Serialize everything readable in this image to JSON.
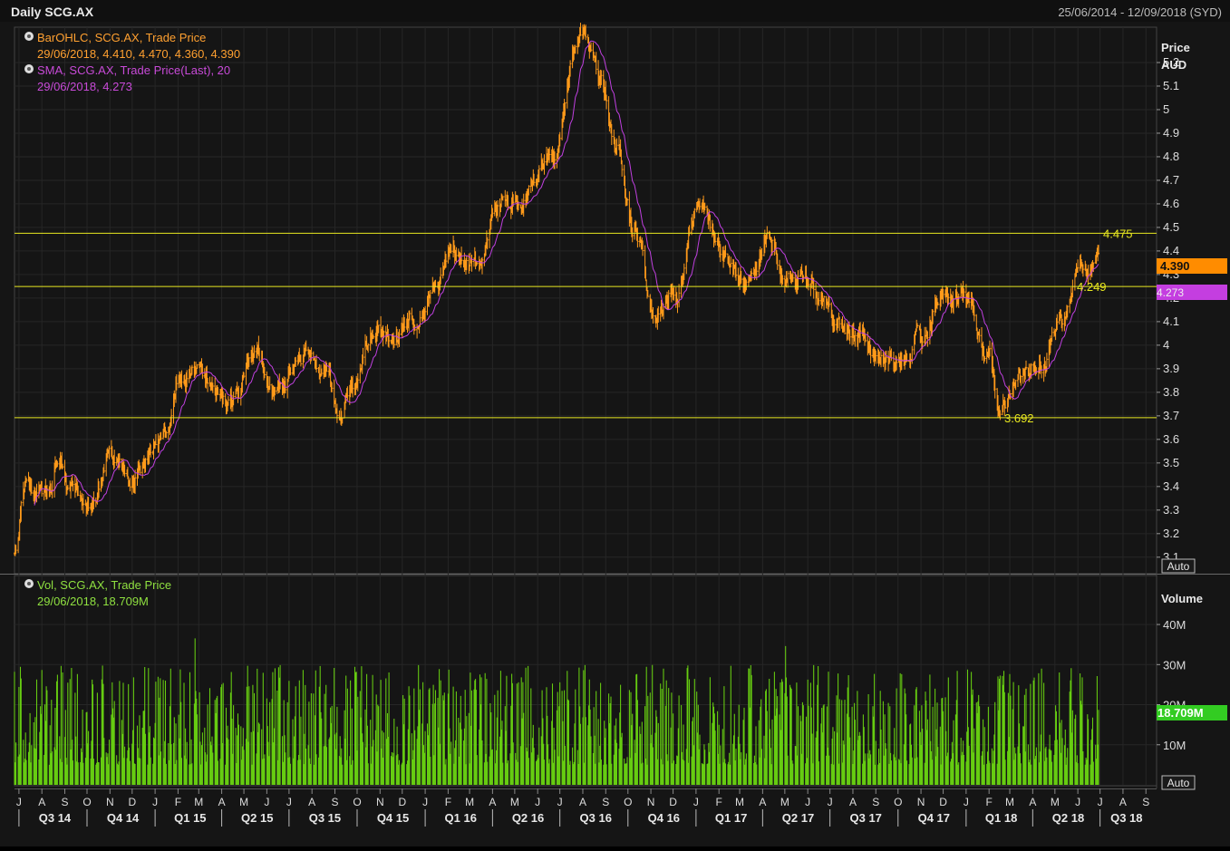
{
  "header": {
    "title": "Daily SCG.AX",
    "date_range": "25/06/2014 - 12/09/2018 (SYD)"
  },
  "legend_price": {
    "ohlc_label": "BarOHLC, SCG.AX, Trade Price",
    "ohlc_values": "29/06/2018, 4.410, 4.470, 4.360, 4.390",
    "sma_label": "SMA, SCG.AX, Trade Price(Last),  20",
    "sma_values": "29/06/2018, 4.273"
  },
  "legend_volume": {
    "vol_label": "Vol, SCG.AX, Trade Price",
    "vol_values": "29/06/2018, 18.709M"
  },
  "price_axis": {
    "title_line1": "Price",
    "title_line2": "AUD",
    "ticks": [
      "5.2",
      "5.1",
      "5",
      "4.9",
      "4.8",
      "4.7",
      "4.6",
      "4.5",
      "4.4",
      "4.3",
      "4.2",
      "4.1",
      "4",
      "3.9",
      "3.8",
      "3.7",
      "3.6",
      "3.5",
      "3.4",
      "3.3",
      "3.2",
      "3.1"
    ],
    "last_price_badge": "4.390",
    "sma_badge": "4.273",
    "auto_label": "Auto"
  },
  "volume_axis": {
    "title": "Volume",
    "ticks": [
      "40M",
      "30M",
      "20M",
      "10M"
    ],
    "last_volume_badge": "18.709M",
    "auto_label": "Auto"
  },
  "horizontal_levels": [
    {
      "value": 4.475,
      "label": "4.475"
    },
    {
      "value": 4.249,
      "label": "4.249"
    },
    {
      "value": 3.692,
      "label": "3.692"
    }
  ],
  "time_axis": {
    "months": [
      "J",
      "A",
      "S",
      "O",
      "N",
      "D",
      "J",
      "F",
      "M",
      "A",
      "M",
      "J",
      "J",
      "A",
      "S",
      "O",
      "N",
      "D",
      "J",
      "F",
      "M",
      "A",
      "M",
      "J",
      "J",
      "A",
      "S",
      "O",
      "N",
      "D",
      "J",
      "F",
      "M",
      "A",
      "M",
      "J",
      "J",
      "A",
      "S",
      "O",
      "N",
      "D",
      "J",
      "F",
      "M",
      "A",
      "M",
      "J",
      "J",
      "A",
      "S"
    ],
    "quarters": [
      "Q3 14",
      "Q4 14",
      "Q1 15",
      "Q2 15",
      "Q3 15",
      "Q4 15",
      "Q1 16",
      "Q2 16",
      "Q3 16",
      "Q4 16",
      "Q1 17",
      "Q2 17",
      "Q3 17",
      "Q4 17",
      "Q1 18",
      "Q2 18",
      "Q3 18"
    ]
  },
  "colors": {
    "background": "#151515",
    "price_line": "#ff9a1a",
    "sma_line": "#c040e0",
    "volume_bars": "#66cc11",
    "level_lines": "#e8e820",
    "text_light": "#e8e8e8",
    "orange_text": "#ffa030",
    "violet_text": "#c84ad8",
    "green_text": "#8fe040"
  },
  "chart_data": {
    "type": "line",
    "ylim_price": [
      3.03,
      5.35
    ],
    "ylim_volume_millions": [
      0,
      52
    ],
    "price_anchors": [
      {
        "date": "2014-06-25",
        "price": 3.1
      },
      {
        "date": "2014-07-10",
        "price": 3.4
      },
      {
        "date": "2014-08-10",
        "price": 3.4
      },
      {
        "date": "2014-08-25",
        "price": 3.55
      },
      {
        "date": "2014-09-10",
        "price": 3.4
      },
      {
        "date": "2014-10-05",
        "price": 3.3
      },
      {
        "date": "2014-11-05",
        "price": 3.55
      },
      {
        "date": "2014-12-05",
        "price": 3.45
      },
      {
        "date": "2014-12-25",
        "price": 3.55
      },
      {
        "date": "2015-01-15",
        "price": 3.6
      },
      {
        "date": "2015-02-05",
        "price": 3.9
      },
      {
        "date": "2015-03-05",
        "price": 3.9
      },
      {
        "date": "2015-04-10",
        "price": 3.75
      },
      {
        "date": "2015-05-15",
        "price": 3.95
      },
      {
        "date": "2015-06-20",
        "price": 3.85
      },
      {
        "date": "2015-07-25",
        "price": 3.95
      },
      {
        "date": "2015-08-20",
        "price": 3.85
      },
      {
        "date": "2015-09-05",
        "price": 3.7
      },
      {
        "date": "2015-09-25",
        "price": 3.85
      },
      {
        "date": "2015-10-25",
        "price": 4.1
      },
      {
        "date": "2015-11-15",
        "price": 4.05
      },
      {
        "date": "2015-12-20",
        "price": 4.1
      },
      {
        "date": "2016-01-15",
        "price": 4.25
      },
      {
        "date": "2016-02-10",
        "price": 4.4
      },
      {
        "date": "2016-03-10",
        "price": 4.3
      },
      {
        "date": "2016-04-10",
        "price": 4.6
      },
      {
        "date": "2016-05-15",
        "price": 4.65
      },
      {
        "date": "2016-06-25",
        "price": 4.8
      },
      {
        "date": "2016-07-20",
        "price": 5.2
      },
      {
        "date": "2016-08-01",
        "price": 5.3
      },
      {
        "date": "2016-08-25",
        "price": 5.1
      },
      {
        "date": "2016-09-15",
        "price": 4.85
      },
      {
        "date": "2016-10-10",
        "price": 4.5
      },
      {
        "date": "2016-11-05",
        "price": 4.15
      },
      {
        "date": "2016-12-05",
        "price": 4.2
      },
      {
        "date": "2017-01-05",
        "price": 4.6
      },
      {
        "date": "2017-02-05",
        "price": 4.4
      },
      {
        "date": "2017-03-10",
        "price": 4.25
      },
      {
        "date": "2017-04-10",
        "price": 4.45
      },
      {
        "date": "2017-05-10",
        "price": 4.3
      },
      {
        "date": "2017-06-05",
        "price": 4.3
      },
      {
        "date": "2017-07-10",
        "price": 4.1
      },
      {
        "date": "2017-08-10",
        "price": 4.05
      },
      {
        "date": "2017-09-05",
        "price": 3.95
      },
      {
        "date": "2017-10-05",
        "price": 3.9
      },
      {
        "date": "2017-11-01",
        "price": 4.05
      },
      {
        "date": "2017-12-01",
        "price": 4.2
      },
      {
        "date": "2018-01-05",
        "price": 4.2
      },
      {
        "date": "2018-02-01",
        "price": 3.95
      },
      {
        "date": "2018-02-15",
        "price": 3.75
      },
      {
        "date": "2018-03-15",
        "price": 3.9
      },
      {
        "date": "2018-04-10",
        "price": 3.9
      },
      {
        "date": "2018-05-05",
        "price": 4.1
      },
      {
        "date": "2018-06-05",
        "price": 4.3
      },
      {
        "date": "2018-06-29",
        "price": 4.39
      }
    ],
    "last_close": 4.39,
    "last_sma": 4.273,
    "last_volume_millions": 18.709,
    "volume_typical_millions": [
      5,
      30
    ]
  }
}
